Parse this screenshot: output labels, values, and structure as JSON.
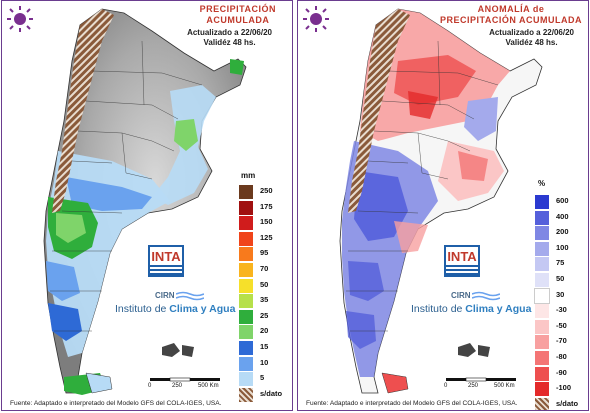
{
  "panels": [
    {
      "title_line1": "PRECIPITACIÓN",
      "title_line2": "ACUMULADA",
      "updated": "Actualizado a 22/06/20",
      "validity": "Validéz 48 hs.",
      "legend_unit": "mm",
      "legend": [
        {
          "label": "250",
          "color": "#6b3a1e"
        },
        {
          "label": "175",
          "color": "#a01010"
        },
        {
          "label": "150",
          "color": "#d01c1c"
        },
        {
          "label": "125",
          "color": "#f0441a"
        },
        {
          "label": "95",
          "color": "#f87a1c"
        },
        {
          "label": "70",
          "color": "#f9b41e"
        },
        {
          "label": "50",
          "color": "#f6e02a"
        },
        {
          "label": "35",
          "color": "#b6e04a"
        },
        {
          "label": "25",
          "color": "#2fae3c"
        },
        {
          "label": "20",
          "color": "#7fd46a"
        },
        {
          "label": "15",
          "color": "#2e6ad6"
        },
        {
          "label": "10",
          "color": "#6aa2ee"
        },
        {
          "label": "5",
          "color": "#b7dbf6"
        },
        {
          "label": "s/dato",
          "color": "#8a5a3a"
        }
      ]
    },
    {
      "title_line1": "ANOMALÍA de",
      "title_line2": "PRECIPITACIÓN ACUMULADA",
      "updated": "Actualizado a 22/06/20",
      "validity": "Validéz 48 hs.",
      "legend_unit": "%",
      "legend": [
        {
          "label": "600",
          "color": "#2b3ad0"
        },
        {
          "label": "400",
          "color": "#5560db"
        },
        {
          "label": "200",
          "color": "#7f87e4"
        },
        {
          "label": "100",
          "color": "#a4aaec"
        },
        {
          "label": "75",
          "color": "#c4c8f3"
        },
        {
          "label": "50",
          "color": "#dfe1f8"
        },
        {
          "label": "30",
          "color": "#ffffff"
        },
        {
          "label": "-30",
          "color": "#fde6e6"
        },
        {
          "label": "-50",
          "color": "#fbc6c6"
        },
        {
          "label": "-70",
          "color": "#f8a0a0"
        },
        {
          "label": "-80",
          "color": "#f47575"
        },
        {
          "label": "-90",
          "color": "#ee4f4f"
        },
        {
          "label": "-100",
          "color": "#e42a2a"
        },
        {
          "label": "s/dato",
          "color": "#8a5a3a"
        }
      ]
    }
  ],
  "logo": {
    "inta": "INTA",
    "cirn": "CIRN",
    "clima_prefix": "Instituto de ",
    "clima_emph": "Clima y Agua"
  },
  "scale": {
    "zero": "0",
    "mid": "250",
    "max": "500 Km"
  },
  "source": "Fuente: Adaptado e interpretado del Modelo GFS del COLA-IGES, USA.",
  "colors": {
    "border": "#6a3d8f",
    "title": "#c0392b",
    "ocean": "#ffffff",
    "land_base": "#9a9a9a"
  }
}
